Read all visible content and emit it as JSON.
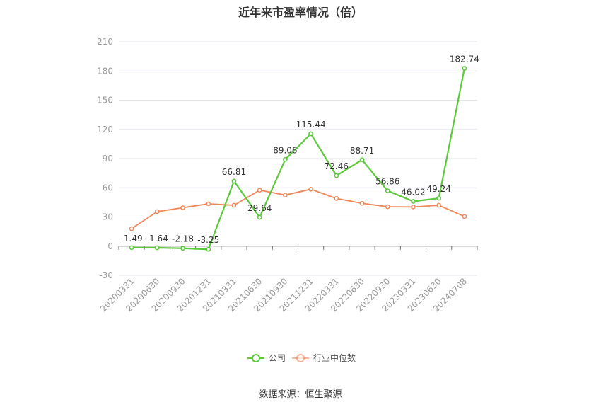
{
  "title": "近年来市盈率情况（倍）",
  "source": "数据来源：恒生聚源",
  "chart_data": {
    "type": "line",
    "title": "近年来市盈率情况（倍）",
    "categories": [
      "20200331",
      "20200630",
      "20200930",
      "20201231",
      "20210331",
      "20210630",
      "20210930",
      "20211231",
      "20220331",
      "20220630",
      "20220930",
      "20230331",
      "20230630",
      "20240708"
    ],
    "ylim": [
      -30,
      210
    ],
    "yticks": [
      -30,
      0,
      30,
      60,
      90,
      120,
      150,
      180,
      210
    ],
    "grid": true,
    "legend_position": "bottom",
    "series": [
      {
        "name": "公司",
        "color": "#5cc93b",
        "values": [
          -1.49,
          -1.64,
          -2.18,
          -3.25,
          66.81,
          29.64,
          89.06,
          115.44,
          72.46,
          88.71,
          56.86,
          46.02,
          49.24,
          182.74
        ],
        "labels": [
          "-1.49",
          "-1.64",
          "-2.18",
          "-3.25",
          "66.81",
          "29.64",
          "89.06",
          "115.44",
          "72.46",
          "88.71",
          "56.86",
          "46.02",
          "49.24",
          "182.74"
        ]
      },
      {
        "name": "行业中位数",
        "color": "#f0875a",
        "values": [
          18,
          35.5,
          39.5,
          43.5,
          42,
          57.5,
          52.5,
          58.5,
          49,
          44,
          40.5,
          40.3,
          42,
          30.5
        ]
      }
    ]
  }
}
